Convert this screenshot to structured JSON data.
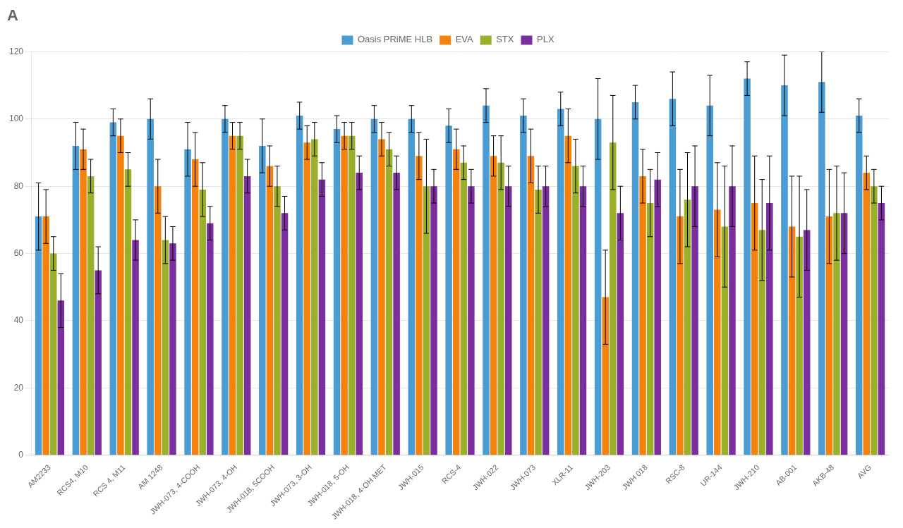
{
  "chart_data": {
    "type": "bar",
    "title": "A",
    "categories": [
      "AM2233",
      "RCS4, M10",
      "RCS 4, M11",
      "AM 1248",
      "JWH-073, 4-COOH",
      "JWH-073, 4-OH",
      "JWH-018, 5COOH",
      "JWH-073, 3-OH",
      "JWH-018, 5-OH",
      "JWH-018, 4-OH MET",
      "JWH-015",
      "RCS-4",
      "JWH-022",
      "JWH-073",
      "XLR-11",
      "JWH-203",
      "JWH 018",
      "RSC-8",
      "UR-144",
      "JWH-210",
      "AB-001",
      "AKB-48",
      "AVG"
    ],
    "series": [
      {
        "name": "Oasis PRiME HLB",
        "color": "#4b9cd3",
        "values": [
          71,
          92,
          99,
          100,
          91,
          100,
          92,
          101,
          97,
          100,
          100,
          98,
          104,
          101,
          103,
          100,
          105,
          106,
          104,
          112,
          110,
          111,
          101
        ],
        "errors": [
          10,
          7,
          4,
          6,
          8,
          4,
          8,
          4,
          4,
          4,
          4,
          5,
          5,
          5,
          5,
          12,
          5,
          8,
          9,
          5,
          9,
          9,
          5
        ]
      },
      {
        "name": "EVA",
        "color": "#f5820d",
        "values": [
          71,
          91,
          95,
          80,
          88,
          95,
          86,
          93,
          95,
          94,
          89,
          91,
          89,
          89,
          95,
          47,
          83,
          71,
          73,
          75,
          68,
          71,
          84
        ],
        "errors": [
          8,
          6,
          5,
          8,
          8,
          4,
          6,
          5,
          4,
          5,
          7,
          6,
          6,
          8,
          8,
          14,
          8,
          14,
          14,
          14,
          15,
          14,
          5
        ]
      },
      {
        "name": "STX",
        "color": "#9caf2a",
        "values": [
          60,
          83,
          85,
          64,
          79,
          95,
          80,
          94,
          95,
          91,
          80,
          87,
          87,
          79,
          86,
          93,
          75,
          76,
          68,
          67,
          65,
          72,
          80
        ],
        "errors": [
          5,
          5,
          5,
          7,
          8,
          4,
          6,
          5,
          4,
          5,
          14,
          5,
          8,
          7,
          8,
          14,
          10,
          14,
          18,
          15,
          18,
          14,
          5
        ]
      },
      {
        "name": "PLX",
        "color": "#7b2f9e",
        "values": [
          46,
          55,
          64,
          63,
          69,
          83,
          72,
          82,
          84,
          84,
          80,
          80,
          80,
          80,
          80,
          72,
          82,
          80,
          80,
          75,
          67,
          72,
          75
        ],
        "errors": [
          8,
          7,
          6,
          5,
          5,
          5,
          5,
          5,
          5,
          5,
          5,
          5,
          6,
          6,
          6,
          8,
          8,
          12,
          12,
          14,
          12,
          12,
          5
        ]
      }
    ],
    "ylim": [
      0,
      120
    ],
    "yticks": [
      0,
      20,
      40,
      60,
      80,
      100,
      120
    ],
    "grid": "y",
    "legend": "top"
  }
}
